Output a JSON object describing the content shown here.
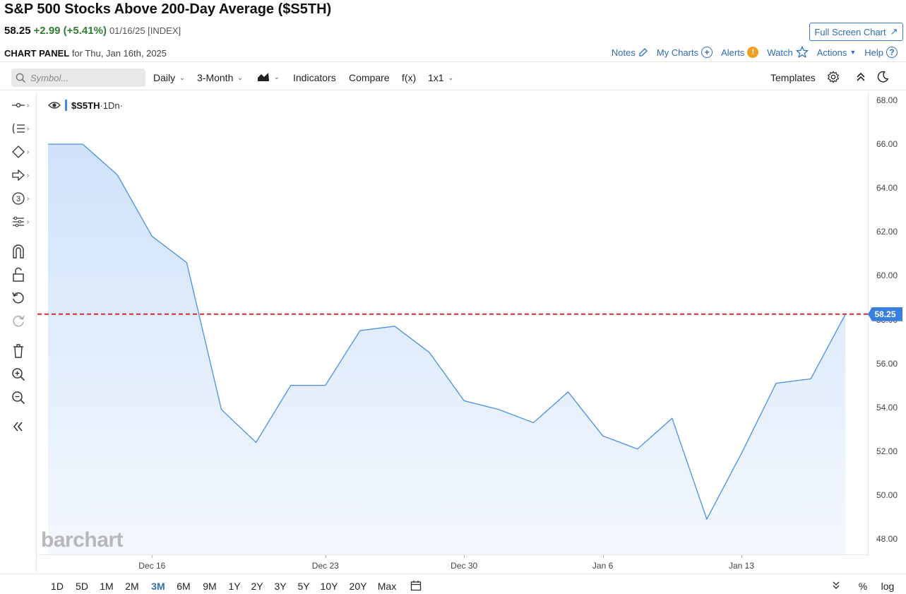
{
  "header": {
    "title": "S&P 500 Stocks Above 200-Day Average ($S5TH)",
    "last": "58.25",
    "change": "+2.99 (+5.41%)",
    "date_exchange": "01/16/25 [INDEX]",
    "full_screen_label": "Full Screen Chart"
  },
  "panel": {
    "label_bold": "CHART PANEL",
    "label_rest": " for Thu, Jan 16th, 2025",
    "links": {
      "notes": "Notes",
      "my_charts": "My Charts",
      "alerts": "Alerts",
      "watch": "Watch",
      "actions": "Actions",
      "help": "Help"
    }
  },
  "toolbar": {
    "symbol_placeholder": "Symbol...",
    "interval": "Daily",
    "period": "3-Month",
    "indicators": "Indicators",
    "compare": "Compare",
    "fx": "f(x)",
    "layout": "1x1",
    "templates": "Templates"
  },
  "legend": {
    "symbol": "$S5TH",
    "interval": "·1Dn·"
  },
  "watermark": "barchart",
  "last_price_tag": "58.25",
  "colors": {
    "line": "#4a90e2",
    "fill_top": "#cfe2fa",
    "fill_bottom": "#f4f8fe",
    "last_line": "#d9282f",
    "accent": "#2f6db5",
    "positive": "#2e7d32"
  },
  "chart_data": {
    "type": "area",
    "series": [
      {
        "x": [
          "Dec 11",
          "Dec 12",
          "Dec 13",
          "Dec 16",
          "Dec 17",
          "Dec 18",
          "Dec 19",
          "Dec 20",
          "Dec 23",
          "Dec 24",
          "Dec 26",
          "Dec 27",
          "Dec 30",
          "Dec 31",
          "Jan 2",
          "Jan 3",
          "Jan 6",
          "Jan 7",
          "Jan 8",
          "Jan 10",
          "Jan 13",
          "Jan 14",
          "Jan 15",
          "Jan 16"
        ],
        "values": [
          66.0,
          66.0,
          64.6,
          61.8,
          60.6,
          53.9,
          52.4,
          55.0,
          55.0,
          57.5,
          57.7,
          56.5,
          54.3,
          53.9,
          53.3,
          54.7,
          52.7,
          52.1,
          53.5,
          48.9,
          51.9,
          55.1,
          55.3,
          58.25
        ]
      }
    ],
    "x_tick_labels": [
      "Dec 16",
      "Dec 23",
      "Dec 30",
      "Jan 6",
      "Jan 13"
    ],
    "y_tick_labels": [
      "68.00",
      "66.00",
      "64.00",
      "62.00",
      "60.00",
      "58.00",
      "56.00",
      "54.00",
      "52.00",
      "50.00",
      "48.00"
    ],
    "ylim": [
      48,
      68
    ],
    "last_value": 58.25,
    "grid": false
  },
  "ranges": {
    "items": [
      "1D",
      "5D",
      "1M",
      "2M",
      "3M",
      "6M",
      "9M",
      "1Y",
      "2Y",
      "3Y",
      "5Y",
      "10Y",
      "20Y",
      "Max"
    ],
    "active": "3M",
    "pct": "%",
    "log": "log"
  }
}
